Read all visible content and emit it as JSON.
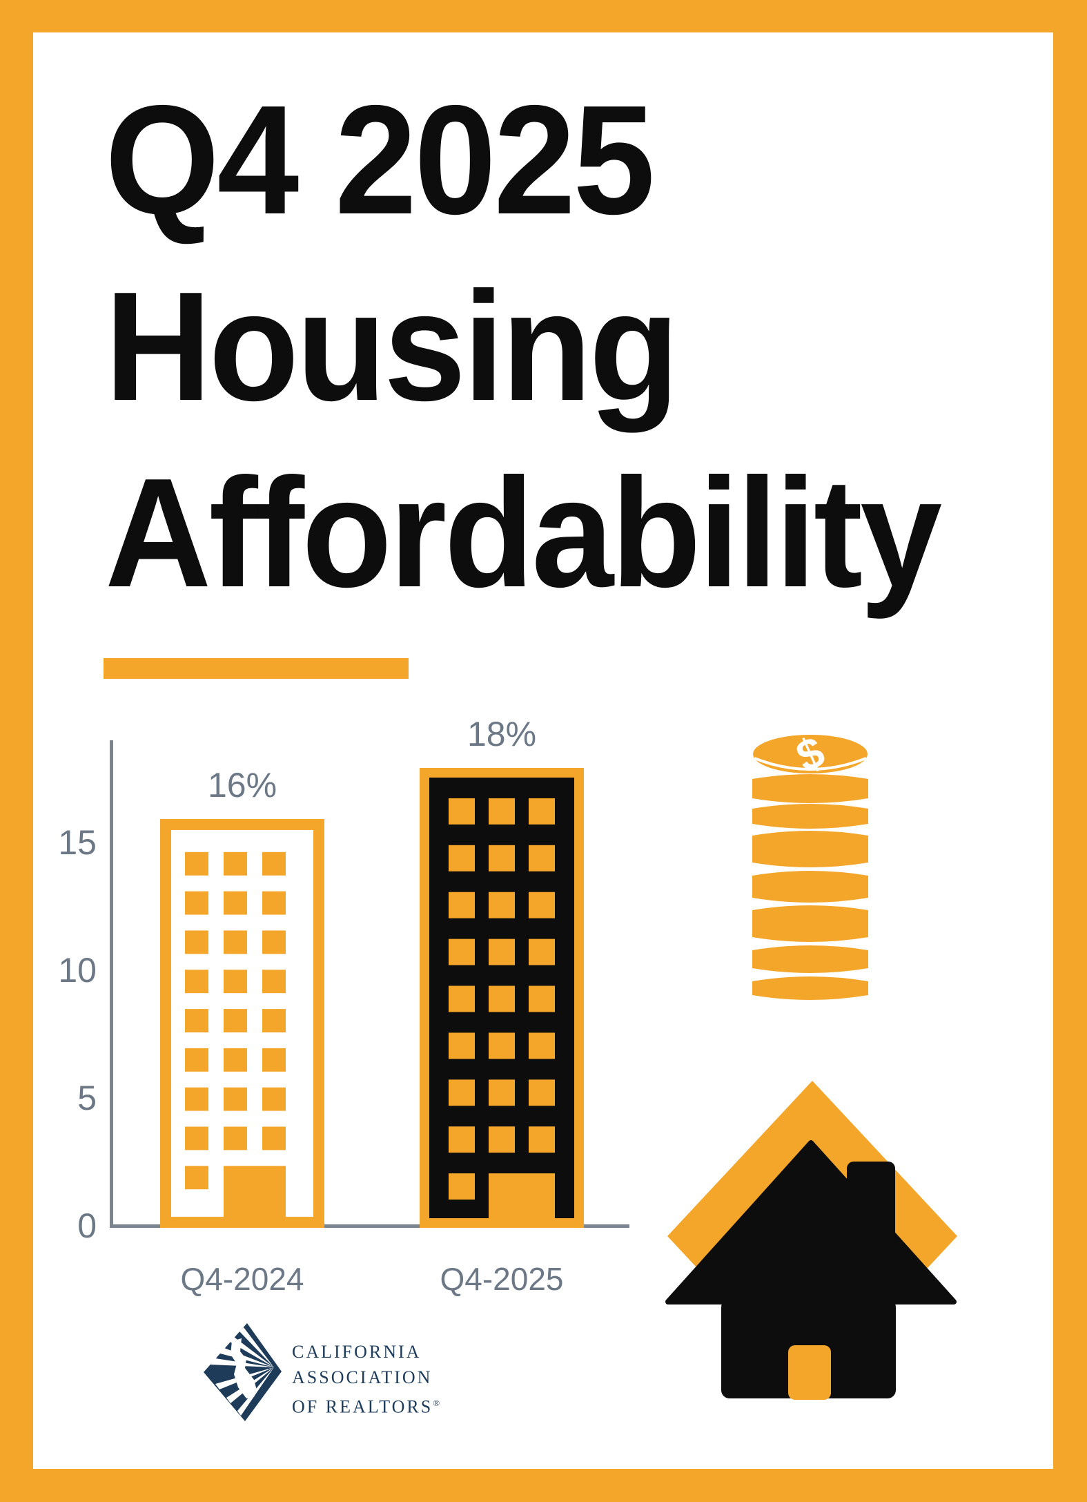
{
  "colors": {
    "accent_orange": "#F4A62B",
    "ink_black": "#0D0D0D",
    "slate_gray": "#6C7886",
    "axis_gray": "#7B858F",
    "navy_blue": "#1E3C5A",
    "background": "#FFFFFF"
  },
  "header": {
    "title_lines": [
      "Q4 2025",
      "Housing",
      "Affordability"
    ]
  },
  "chart_data": {
    "type": "bar",
    "title": "",
    "xlabel": "",
    "ylabel": "",
    "categories": [
      "Q4-2024",
      "Q4-2025"
    ],
    "values": [
      16,
      18
    ],
    "value_labels": [
      "16%",
      "18%"
    ],
    "yticks": [
      0,
      5,
      10,
      15
    ],
    "ylim": [
      0,
      19
    ],
    "grid": false,
    "legend": null,
    "bar_styles": [
      {
        "style": "outlined building pictogram",
        "fill": "#FFFFFF",
        "outline": "#F4A62B"
      },
      {
        "style": "filled building pictogram",
        "fill": "#0D0D0D",
        "outline": "#F4A62B"
      }
    ]
  },
  "icons": {
    "coin_stack": {
      "symbol": "$"
    },
    "house": {
      "parts": "orange diamond, black house with chimney, orange door"
    }
  },
  "logo": {
    "org_lines": [
      "CALIFORNIA",
      "ASSOCIATION",
      "OF REALTORS"
    ],
    "registered": "®"
  }
}
